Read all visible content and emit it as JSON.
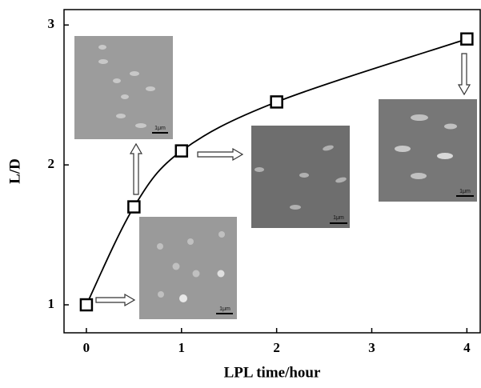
{
  "chart_data": {
    "type": "line",
    "x": [
      0,
      0.5,
      1,
      2,
      4
    ],
    "values": [
      1,
      1.7,
      2.1,
      2.45,
      2.9
    ],
    "color": "#000000",
    "xlabel": "LPL time/hour",
    "ylabel": "L/D",
    "xlim": [
      -0.235,
      4.14
    ],
    "xticks": [
      0,
      1,
      2,
      3,
      4
    ],
    "ylim": [
      0.8,
      3.11
    ],
    "yticks": [
      1,
      2,
      3
    ],
    "insets": [
      {
        "scale_bar": "1μm"
      },
      {
        "scale_bar": "1μm"
      },
      {
        "scale_bar": "1μm"
      },
      {
        "scale_bar": "1μm"
      }
    ]
  }
}
